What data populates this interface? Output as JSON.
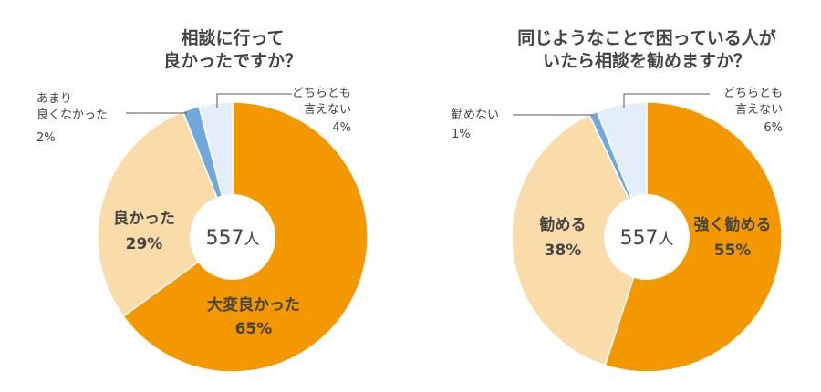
{
  "colors": {
    "very_good": "#F39800",
    "good": "#FADCAB",
    "not_good": "#6FA9DC",
    "neutral": "#E3EEF8",
    "center": "#FFFFFF",
    "leader": "#555555"
  },
  "chart_data": [
    {
      "type": "pie",
      "title": [
        "相談に行って",
        "良かったですか？"
      ],
      "center_value": "557",
      "center_unit": "人",
      "slices": [
        {
          "label": [
            "大変良かった"
          ],
          "value": 65,
          "value_label": "65%",
          "color": "#F39800"
        },
        {
          "label": [
            "良かった"
          ],
          "value": 29,
          "value_label": "29%",
          "color": "#FADCAB"
        },
        {
          "label": [
            "あまり",
            "良くなかった"
          ],
          "value": 2,
          "value_label": "2%",
          "color": "#6FA9DC"
        },
        {
          "label": [
            "どちらとも",
            "言えない"
          ],
          "value": 4,
          "value_label": "4%",
          "color": "#E3EEF8"
        }
      ]
    },
    {
      "type": "pie",
      "title": [
        "同じようなことで困っている人が",
        "いたら相談を勧めますか？"
      ],
      "center_value": "557",
      "center_unit": "人",
      "slices": [
        {
          "label": [
            "強く勧める"
          ],
          "value": 55,
          "value_label": "55%",
          "color": "#F39800"
        },
        {
          "label": [
            "勧める"
          ],
          "value": 38,
          "value_label": "38%",
          "color": "#FADCAB"
        },
        {
          "label": [
            "勧めない"
          ],
          "value": 1,
          "value_label": "1%",
          "color": "#6FA9DC"
        },
        {
          "label": [
            "どちらとも",
            "言えない"
          ],
          "value": 6,
          "value_label": "6%",
          "color": "#E3EEF8"
        }
      ]
    }
  ]
}
